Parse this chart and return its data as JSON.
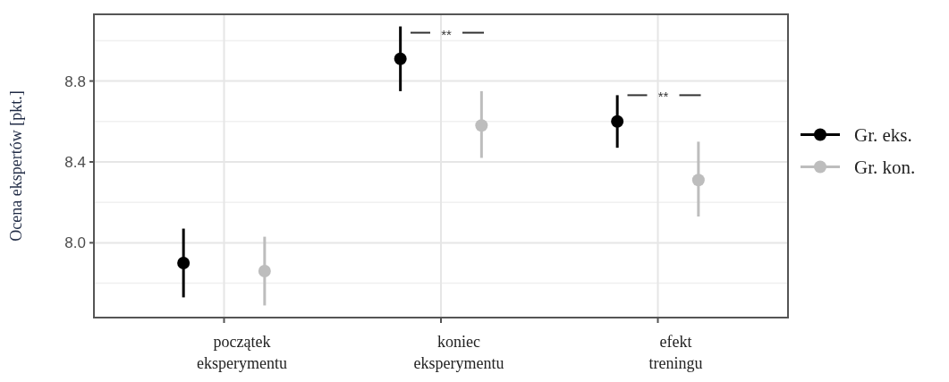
{
  "chart_data": {
    "type": "scatter",
    "ylabel": "Ocena ekspertów [pkt.]",
    "categories": [
      "początek eksperymentu",
      "koniec eksperymentu",
      "efekt treningu"
    ],
    "series": [
      {
        "name": "Gr. eks.",
        "color": "#000000",
        "values": [
          7.9,
          8.91,
          8.6
        ],
        "errors": [
          [
            7.73,
            8.07
          ],
          [
            8.75,
            9.07
          ],
          [
            8.47,
            8.73
          ]
        ]
      },
      {
        "name": "Gr. kon.",
        "color": "#bdbdbd",
        "values": [
          7.86,
          8.58,
          8.31
        ],
        "errors": [
          [
            7.69,
            8.03
          ],
          [
            8.42,
            8.75
          ],
          [
            8.13,
            8.5
          ]
        ]
      }
    ],
    "ylim": [
      7.63,
      9.13
    ],
    "yticks": [
      {
        "value": 7.8,
        "label": null
      },
      {
        "value": 8.0,
        "label": "8.0"
      },
      {
        "value": 8.2,
        "label": null
      },
      {
        "value": 8.4,
        "label": "8.4"
      },
      {
        "value": 8.6,
        "label": null
      },
      {
        "value": 8.8,
        "label": "8.8"
      },
      {
        "value": 9.0,
        "label": null
      }
    ],
    "annotations": [
      "**",
      "**"
    ],
    "grid": true,
    "legend": "right",
    "marker": "circle"
  }
}
